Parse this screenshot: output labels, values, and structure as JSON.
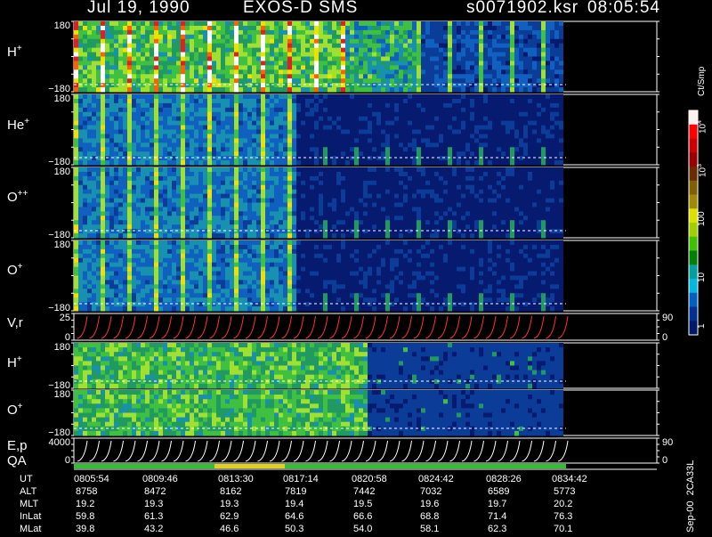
{
  "header": {
    "date": "Jul 19, 1990",
    "instrument": "EXOS-D SMS",
    "file": "s0071902.ksr",
    "time": "08:05:54"
  },
  "colorbar": {
    "unit": "Ct/Smp",
    "labels": {
      "e4": "10",
      "e3": "10",
      "l100": "100",
      "l10": "10",
      "l1": "1"
    },
    "colors": [
      "#fff0f0",
      "#ff0000",
      "#cc0000",
      "#990000",
      "#6b2a00",
      "#806000",
      "#a08a00",
      "#e0e000",
      "#a0d000",
      "#40c000",
      "#008000",
      "#00a0a0",
      "#00b8e0",
      "#0060c0",
      "#003090",
      "#001a6a"
    ]
  },
  "panels": {
    "h1": {
      "label": "H",
      "charge": "+",
      "ymax": "180",
      "ymin": "−180"
    },
    "he": {
      "label": "He",
      "charge": "+",
      "ymax": "180",
      "ymin": "−180"
    },
    "o2": {
      "label": "O",
      "charge": "++",
      "ymax": "180",
      "ymin": "−180"
    },
    "o1": {
      "label": "O",
      "charge": "+",
      "ymax": "180",
      "ymin": "−180"
    },
    "v": {
      "label": "V,r",
      "ymax": "25",
      "ymin": "0",
      "rmax": "90",
      "rmin": "0"
    },
    "h2": {
      "label": "H",
      "charge": "+",
      "ymax": "180",
      "ymin": "−180"
    },
    "o3": {
      "label": "O",
      "charge": "+",
      "ymax": "180",
      "ymin": "−180"
    },
    "ep": {
      "label": "E,p",
      "ymax": "4000",
      "ymin": "0",
      "rmax": "90",
      "rmin": "0"
    },
    "qa": {
      "label": "QA"
    }
  },
  "table": {
    "rows": [
      {
        "name": "UT",
        "values": [
          "0805:54",
          "0809:46",
          "0813:30",
          "0817:14",
          "0820:58",
          "0824:42",
          "0828:26",
          "0834:42"
        ]
      },
      {
        "name": "ALT",
        "values": [
          "8758",
          "8472",
          "8162",
          "7819",
          "7442",
          "7032",
          "6589",
          "5773"
        ]
      },
      {
        "name": "MLT",
        "values": [
          "19.2",
          "19.3",
          "19.3",
          "19.4",
          "19.5",
          "19.6",
          "19.7",
          "20.2"
        ]
      },
      {
        "name": "InLat",
        "values": [
          "59.8",
          "61.3",
          "62.9",
          "64.6",
          "66.6",
          "68.8",
          "71.4",
          "76.3"
        ]
      },
      {
        "name": "MLat",
        "values": [
          "39.8",
          "43.2",
          "46.6",
          "50.3",
          "54.0",
          "58.1",
          "62.3",
          "70.1"
        ]
      }
    ]
  },
  "side_id": "Sep-00  2CA33L",
  "chart_data": {
    "type": "heatmap",
    "title": "Jul 19, 1990   EXOS-D SMS",
    "x_axis": [
      "0805:54",
      "0809:46",
      "0813:30",
      "0817:14",
      "0820:58",
      "0824:42",
      "0828:26",
      "0834:42"
    ],
    "colorscale": {
      "unit": "Ct/Smp",
      "range": [
        1,
        10000
      ],
      "log": true
    },
    "series": [
      {
        "name": "H+",
        "ylim": [
          -180,
          180
        ]
      },
      {
        "name": "He+",
        "ylim": [
          -180,
          180
        ]
      },
      {
        "name": "O++",
        "ylim": [
          -180,
          180
        ]
      },
      {
        "name": "O+",
        "ylim": [
          -180,
          180
        ]
      },
      {
        "name": "V,r",
        "ylim": [
          0,
          25
        ],
        "right_ylim": [
          0,
          90
        ]
      },
      {
        "name": "H+",
        "ylim": [
          -180,
          180
        ]
      },
      {
        "name": "O+",
        "ylim": [
          -180,
          180
        ]
      },
      {
        "name": "E,p",
        "ylim": [
          0,
          4000
        ],
        "right_ylim": [
          0,
          90
        ]
      }
    ],
    "qa_segments": [
      {
        "from": "0805:54",
        "to": "0813:30",
        "color": "#30c030"
      },
      {
        "from": "0813:30",
        "to": "0817:14",
        "color": "#e0d020"
      },
      {
        "from": "0817:14",
        "to": "0820:58",
        "color": "#30c030"
      },
      {
        "from": "0820:58",
        "to": "0834:42",
        "color": "#30c030"
      }
    ]
  }
}
